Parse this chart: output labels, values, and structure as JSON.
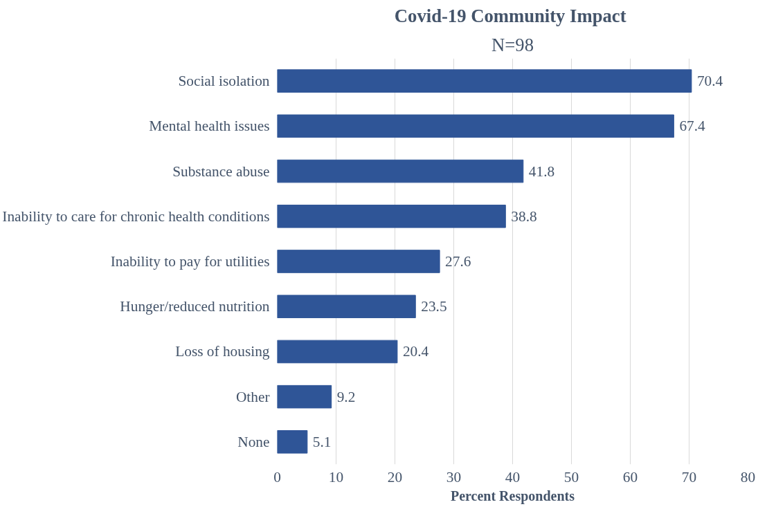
{
  "chart_data": {
    "type": "bar",
    "orientation": "horizontal",
    "title": "Covid-19  Community Impact",
    "subtitle": "N=98",
    "xlabel": "Percent Respondents",
    "categories": [
      "Social isolation",
      "Mental health issues",
      "Substance abuse",
      "Inability to care for chronic health conditions",
      "Inability to pay for utilities",
      "Hunger/reduced nutrition",
      "Loss of housing",
      "Other",
      "None"
    ],
    "values": [
      70.4,
      67.4,
      41.8,
      38.8,
      27.6,
      23.5,
      20.4,
      9.2,
      5.1
    ],
    "color": "#2f5597",
    "xlim": [
      0,
      80
    ],
    "xticks": [
      0,
      10,
      20,
      30,
      40,
      50,
      60,
      70,
      80
    ],
    "grid": "x",
    "data_labels": true
  }
}
